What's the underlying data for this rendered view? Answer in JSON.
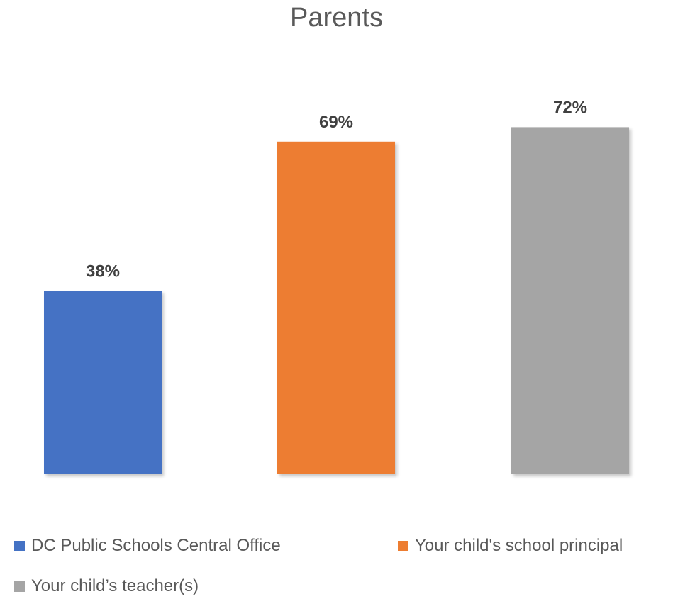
{
  "chart_data": {
    "type": "bar",
    "title": "Parents",
    "categories": [
      "DC Public Schools Central Office",
      "Your child's school principal",
      "Your child’s teacher(s)"
    ],
    "values": [
      38,
      69,
      72
    ],
    "value_labels": [
      "38%",
      "69%",
      "72%"
    ],
    "colors": [
      "#4472C4",
      "#ED7D31",
      "#A5A5A5"
    ],
    "ylim": [
      0,
      100
    ],
    "grid": false,
    "legend_position": "bottom",
    "xlabel": "",
    "ylabel": ""
  }
}
